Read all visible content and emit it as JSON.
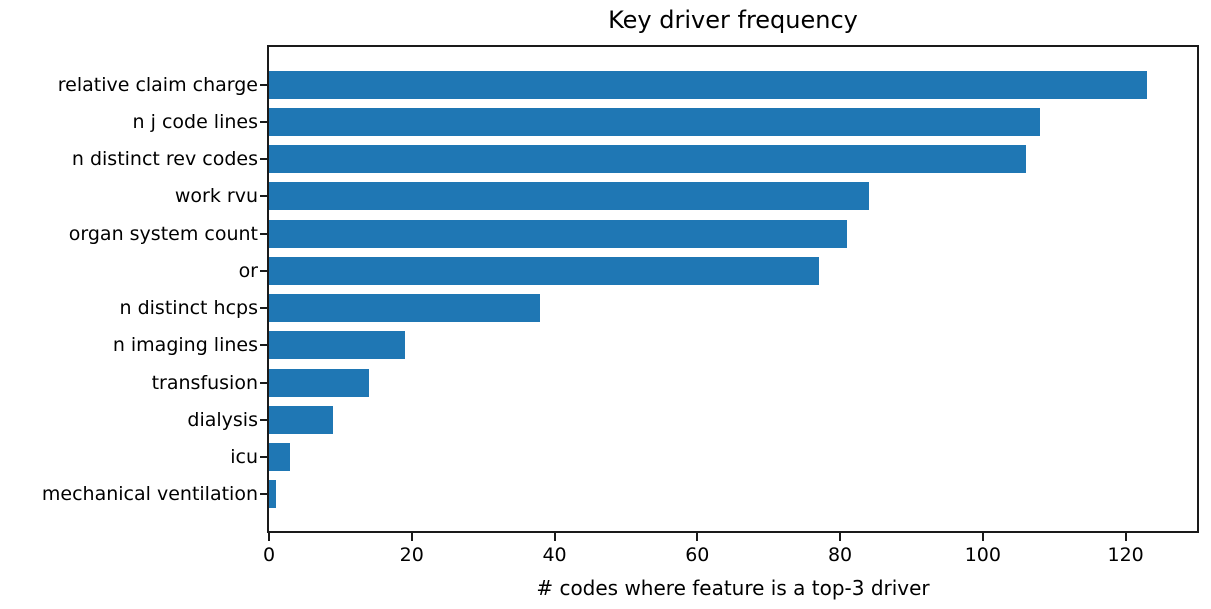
{
  "colors": {
    "bar": "#1f77b4",
    "spine": "#1a1a1a",
    "text": "#000000",
    "background": "#ffffff"
  },
  "chart_data": {
    "type": "bar",
    "orientation": "horizontal",
    "title": "Key driver frequency",
    "xlabel": "# codes where feature is a top-3 driver",
    "ylabel": "",
    "categories": [
      "relative claim charge",
      "n j code lines",
      "n distinct rev codes",
      "work rvu",
      "organ system count",
      "or",
      "n distinct hcps",
      "n imaging lines",
      "transfusion",
      "dialysis",
      "icu",
      "mechanical ventilation"
    ],
    "values": [
      123,
      108,
      106,
      84,
      81,
      77,
      38,
      19,
      14,
      9,
      3,
      1
    ],
    "xlim": [
      0,
      130
    ],
    "xticks": [
      0,
      20,
      40,
      60,
      80,
      100,
      120
    ],
    "grid": false,
    "legend_position": "none"
  }
}
